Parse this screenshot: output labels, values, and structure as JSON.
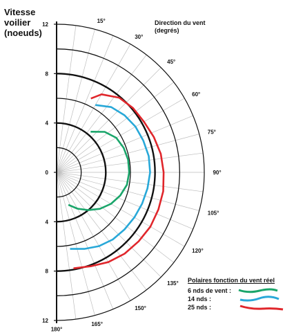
{
  "axis_title": [
    "Vitesse",
    "voilier",
    "(noeuds)"
  ],
  "direction_title": [
    "Direction du vent",
    "(degrés)"
  ],
  "legend": {
    "title": "Polaires fonction du vent réel",
    "entries": [
      "6 nds de vent :",
      "14 nds :",
      "25 nds :"
    ]
  },
  "colors": {
    "s6": "#1aa56a",
    "s14": "#28a8d8",
    "s25": "#e0262b"
  },
  "chart_data": {
    "type": "polar-line",
    "r_ticks": [
      "12",
      "8",
      "4",
      "0",
      "4",
      "8",
      "12"
    ],
    "r_max": 12,
    "angle_labels": [
      "15°",
      "30°",
      "45°",
      "60°",
      "75°",
      "90°",
      "105°",
      "120°",
      "135°",
      "150°",
      "165°",
      "180°"
    ],
    "angle_ticks": [
      15,
      30,
      45,
      60,
      75,
      90,
      105,
      120,
      135,
      150,
      165,
      180
    ],
    "rings": [
      2,
      4,
      6,
      8,
      10,
      12
    ],
    "series": [
      {
        "key": "s6",
        "angles": [
          40,
          50,
          60,
          70,
          80,
          90,
          100,
          110,
          120,
          130,
          140,
          150,
          160
        ],
        "values": [
          4.3,
          5.1,
          5.6,
          5.8,
          5.9,
          5.9,
          5.8,
          5.5,
          5.1,
          4.6,
          4.0,
          3.4,
          2.8
        ]
      },
      {
        "key": "s14",
        "angles": [
          30,
          40,
          50,
          60,
          70,
          80,
          90,
          100,
          110,
          120,
          130,
          140,
          150,
          160,
          170
        ],
        "values": [
          6.3,
          6.9,
          7.2,
          7.4,
          7.5,
          7.6,
          7.6,
          7.5,
          7.4,
          7.3,
          7.2,
          7.1,
          6.9,
          6.6,
          6.3
        ]
      },
      {
        "key": "s25",
        "angles": [
          25,
          30,
          40,
          50,
          60,
          70,
          80,
          90,
          100,
          110,
          120,
          130,
          140,
          150,
          160,
          170
        ],
        "values": [
          6.6,
          7.3,
          7.9,
          8.1,
          8.2,
          8.4,
          8.6,
          8.7,
          8.8,
          8.8,
          8.8,
          8.7,
          8.6,
          8.4,
          8.1,
          7.9
        ]
      }
    ]
  }
}
